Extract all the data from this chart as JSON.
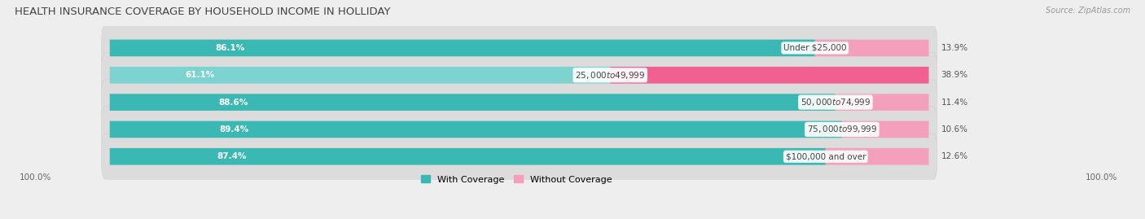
{
  "title": "HEALTH INSURANCE COVERAGE BY HOUSEHOLD INCOME IN HOLLIDAY",
  "source": "Source: ZipAtlas.com",
  "categories": [
    "Under $25,000",
    "$25,000 to $49,999",
    "$50,000 to $74,999",
    "$75,000 to $99,999",
    "$100,000 and over"
  ],
  "with_coverage": [
    86.1,
    61.1,
    88.6,
    89.4,
    87.4
  ],
  "without_coverage": [
    13.9,
    38.9,
    11.4,
    10.6,
    12.6
  ],
  "coverage_colors": [
    "#3ab8b4",
    "#7dd3d0",
    "#3ab8b4",
    "#3ab8b4",
    "#3ab8b4"
  ],
  "no_coverage_colors": [
    "#f4a0bc",
    "#f06090",
    "#f4a0bc",
    "#f4a0bc",
    "#f4a0bc"
  ],
  "background_color": "#eeeeee",
  "bar_background": "#e8e8e8",
  "title_fontsize": 9.5,
  "label_fontsize": 7.5,
  "cat_fontsize": 7.5,
  "axis_label_fontsize": 7.5,
  "legend_fontsize": 8,
  "source_fontsize": 7,
  "left_label_100": "100.0%",
  "right_label_100": "100.0%",
  "legend_coverage": "With Coverage",
  "legend_no_coverage": "Without Coverage"
}
